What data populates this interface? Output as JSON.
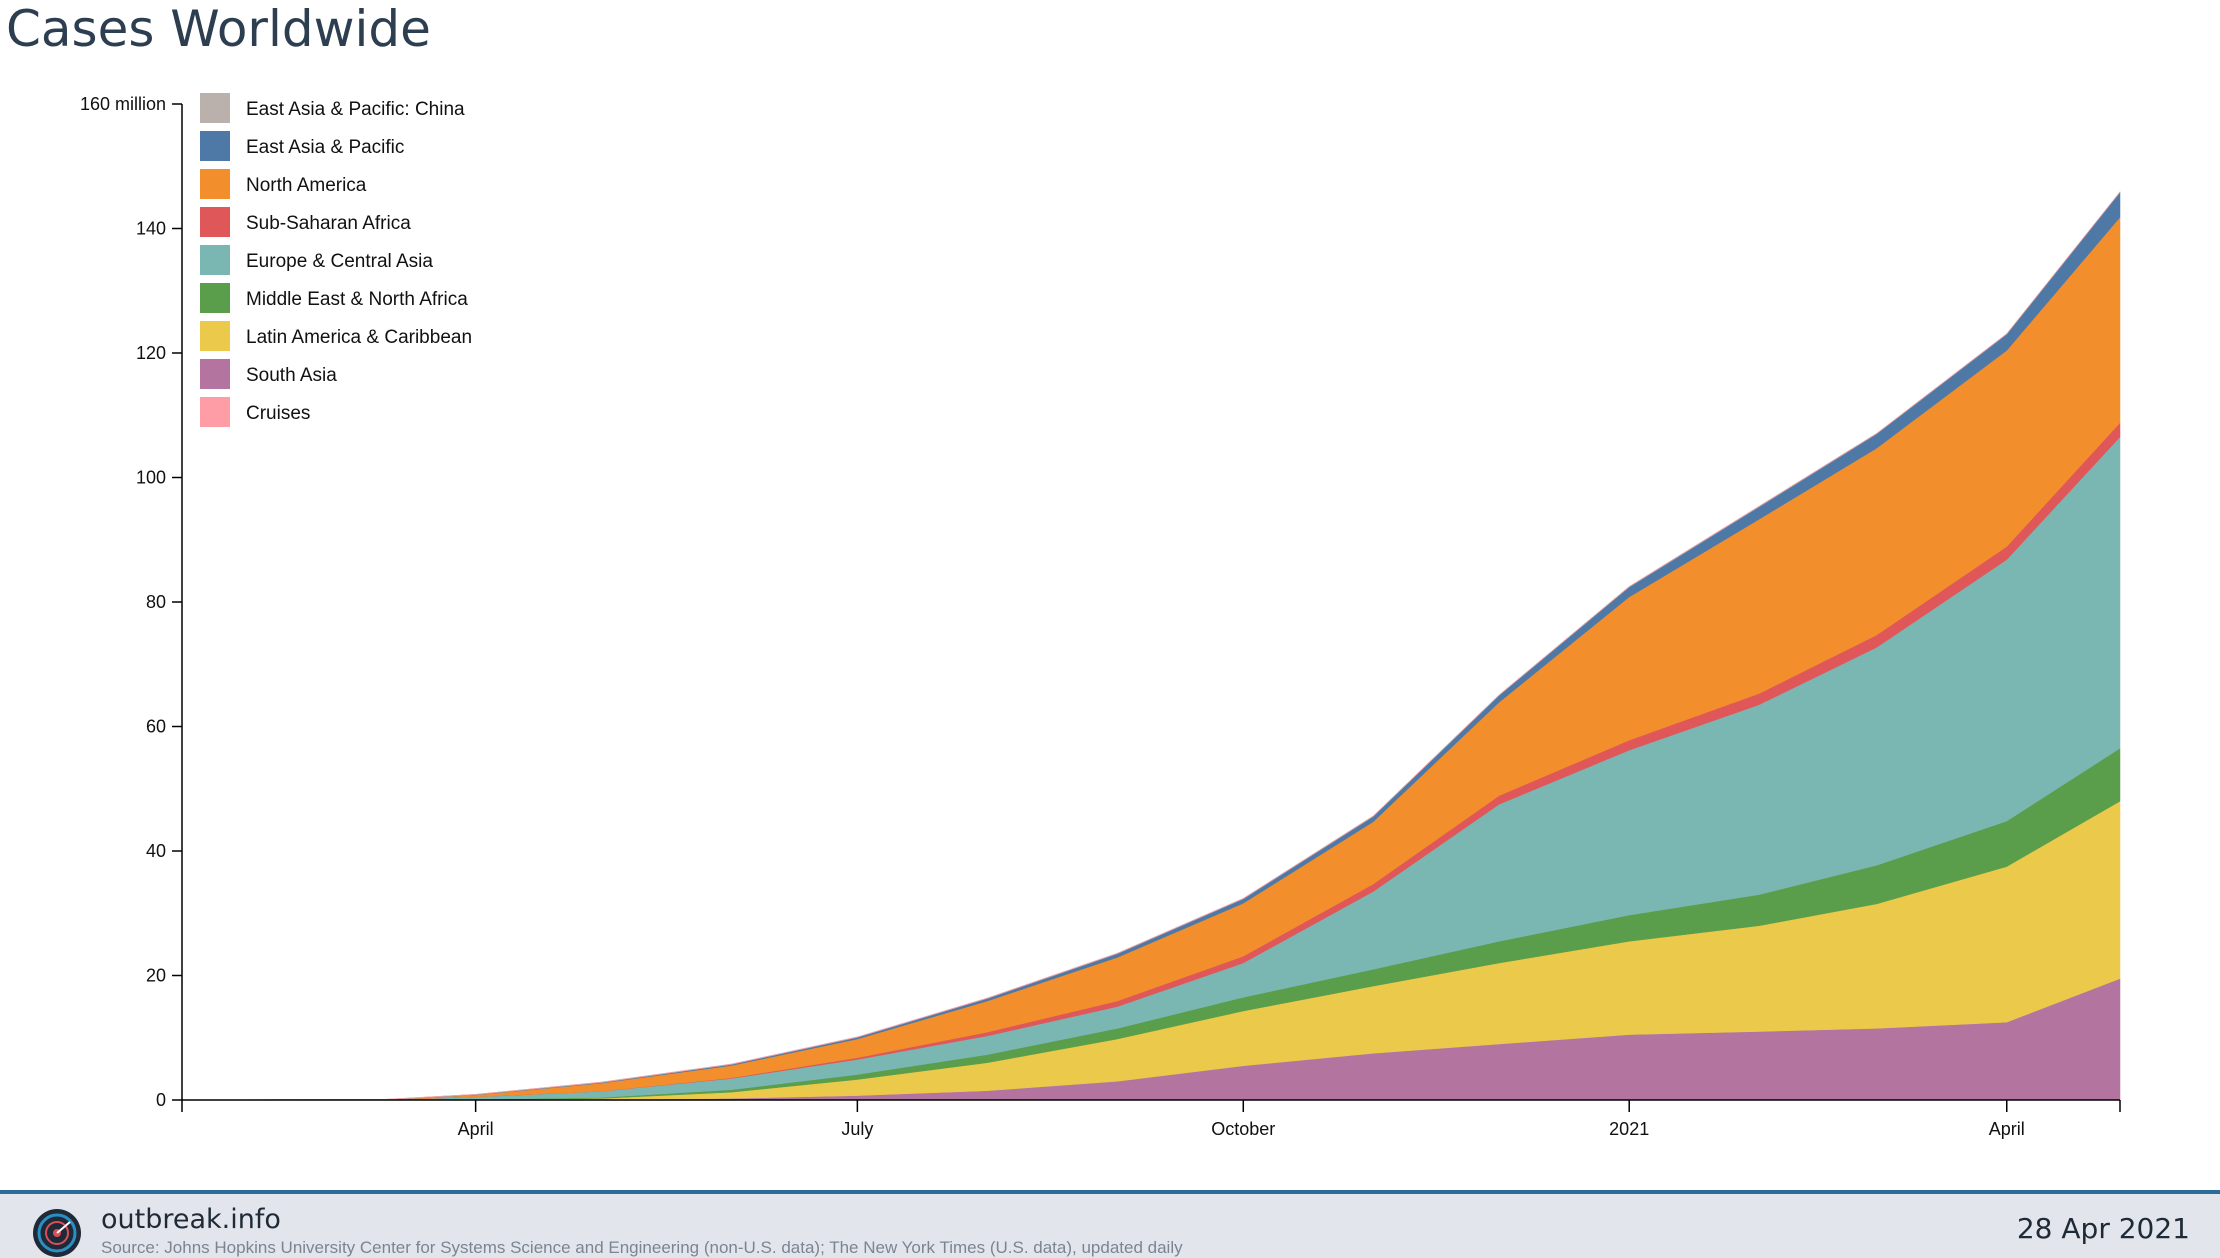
{
  "title": "Cases Worldwide",
  "footer": {
    "brand": "outbreak.info",
    "source": "Source: Johns Hopkins University Center for Systems Science and Engineering (non-U.S. data); The New York Times (U.S. data), updated daily",
    "date": "28 Apr 2021"
  },
  "chart_data": {
    "type": "area",
    "stacked": true,
    "x_unit": "date",
    "x": [
      "2020-01-22",
      "2020-02-15",
      "2020-03-10",
      "2020-04-01",
      "2020-05-01",
      "2020-06-01",
      "2020-07-01",
      "2020-08-01",
      "2020-09-01",
      "2020-10-01",
      "2020-11-01",
      "2020-12-01",
      "2021-01-01",
      "2021-02-01",
      "2021-03-01",
      "2021-04-01",
      "2021-04-28"
    ],
    "x_ticks": [
      {
        "date": "2020-04-01",
        "label": "April"
      },
      {
        "date": "2020-07-01",
        "label": "July"
      },
      {
        "date": "2020-10-01",
        "label": "October"
      },
      {
        "date": "2021-01-01",
        "label": "2021"
      },
      {
        "date": "2021-04-01",
        "label": "April"
      }
    ],
    "y_ticks": [
      {
        "value": 0,
        "label": "0"
      },
      {
        "value": 20,
        "label": "20"
      },
      {
        "value": 40,
        "label": "40"
      },
      {
        "value": 60,
        "label": "60"
      },
      {
        "value": 80,
        "label": "80"
      },
      {
        "value": 100,
        "label": "100"
      },
      {
        "value": 120,
        "label": "120"
      },
      {
        "value": 140,
        "label": "140"
      },
      {
        "value": 160,
        "label": "160 million"
      }
    ],
    "ylim": [
      0,
      160
    ],
    "y_unit": "million",
    "legend_position": "top-left",
    "series": [
      {
        "name": "South Asia",
        "color": "#b375a0",
        "values": [
          0,
          0,
          0,
          0,
          0.05,
          0.25,
          0.7,
          1.5,
          3.0,
          5.5,
          7.5,
          9.0,
          10.5,
          11.0,
          11.5,
          12.5,
          19.5
        ]
      },
      {
        "name": "Latin America & Caribbean",
        "color": "#ebc94a",
        "values": [
          0,
          0,
          0,
          0.05,
          0.2,
          1.0,
          2.6,
          4.5,
          6.8,
          8.8,
          10.8,
          13.0,
          15.0,
          17.0,
          20.0,
          25.0,
          28.5
        ]
      },
      {
        "name": "Middle East & North Africa",
        "color": "#5a9e4b",
        "values": [
          0,
          0,
          0,
          0.05,
          0.15,
          0.4,
          0.8,
          1.3,
          1.7,
          2.2,
          2.7,
          3.5,
          4.2,
          5.0,
          6.2,
          7.3,
          8.5
        ]
      },
      {
        "name": "Europe & Central Asia",
        "color": "#7ab7b2",
        "values": [
          0,
          0,
          0.01,
          0.4,
          1.0,
          1.8,
          2.4,
          3.0,
          3.5,
          5.5,
          12.5,
          22.0,
          26.5,
          30.5,
          35.0,
          42.0,
          50.0
        ]
      },
      {
        "name": "Sub-Saharan Africa",
        "color": "#e05759",
        "values": [
          0,
          0,
          0,
          0.01,
          0.02,
          0.1,
          0.3,
          0.6,
          0.9,
          1.1,
          1.2,
          1.4,
          1.6,
          1.8,
          2.0,
          2.1,
          2.3
        ]
      },
      {
        "name": "North America",
        "color": "#f28e2c",
        "values": [
          0,
          0,
          0,
          0.3,
          1.3,
          2.0,
          3.0,
          5.0,
          7.0,
          8.5,
          10.0,
          15.0,
          23.0,
          28.0,
          30.0,
          31.5,
          33.0
        ]
      },
      {
        "name": "East Asia & Pacific",
        "color": "#4e79a7",
        "values": [
          0,
          0,
          0,
          0.02,
          0.08,
          0.15,
          0.25,
          0.4,
          0.6,
          0.7,
          0.85,
          1.1,
          1.6,
          2.0,
          2.3,
          2.6,
          4.0
        ]
      },
      {
        "name": "East Asia & Pacific: China",
        "color": "#bab0ac",
        "values": [
          0.0006,
          0.065,
          0.081,
          0.082,
          0.083,
          0.083,
          0.084,
          0.088,
          0.09,
          0.091,
          0.092,
          0.093,
          0.096,
          0.1,
          0.1,
          0.1,
          0.1
        ]
      },
      {
        "name": "Cruises",
        "color": "#ff9da7",
        "values": [
          0,
          0.002,
          0.004,
          0.005,
          0.005,
          0.005,
          0.005,
          0.005,
          0.005,
          0.005,
          0.005,
          0.005,
          0.005,
          0.005,
          0.005,
          0.005,
          0.005
        ]
      }
    ],
    "legend_order": [
      "East Asia & Pacific: China",
      "East Asia & Pacific",
      "North America",
      "Sub-Saharan Africa",
      "Europe & Central Asia",
      "Middle East & North Africa",
      "Latin America & Caribbean",
      "South Asia",
      "Cruises"
    ]
  }
}
